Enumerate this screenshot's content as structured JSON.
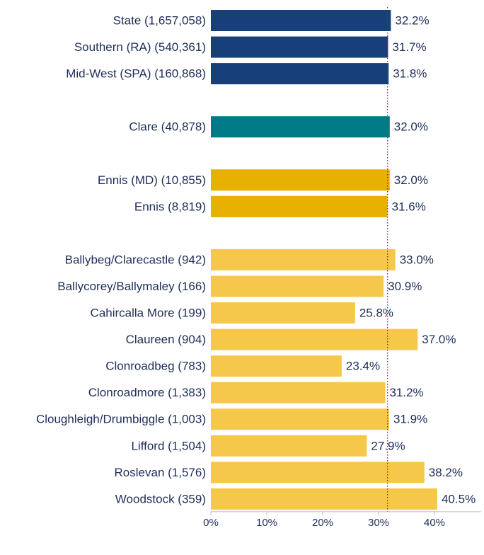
{
  "chart_data": {
    "type": "bar",
    "orientation": "horizontal",
    "categories": [
      "State (1,657,058)",
      "Southern (RA) (540,361)",
      "Mid-West (SPA) (160,868)",
      "Clare (40,878)",
      "Ennis (MD) (10,855)",
      "Ennis (8,819)",
      "Ballybeg/Clarecastle (942)",
      "Ballycorey/Ballymaley (166)",
      "Cahircalla More (199)",
      "Claureen (904)",
      "Clonroadbeg (783)",
      "Clonroadmore (1,383)",
      "Cloughleigh/Drumbiggle (1,003)",
      "Lifford (1,504)",
      "Roslevan (1,576)",
      "Woodstock (359)"
    ],
    "values": [
      32.2,
      31.7,
      31.8,
      32.0,
      32.0,
      31.6,
      33.0,
      30.9,
      25.8,
      37.0,
      23.4,
      31.2,
      31.9,
      27.9,
      38.2,
      40.5
    ],
    "value_labels": [
      "32.2%",
      "31.7%",
      "31.8%",
      "32.0%",
      "32.0%",
      "31.6%",
      "33.0%",
      "30.9%",
      "25.8%",
      "37.0%",
      "23.4%",
      "31.2%",
      "31.9%",
      "27.9%",
      "38.2%",
      "40.5%"
    ],
    "colors": [
      "#173f7a",
      "#173f7a",
      "#173f7a",
      "#007a87",
      "#e8b000",
      "#e8b000",
      "#f5c84c",
      "#f5c84c",
      "#f5c84c",
      "#f5c84c",
      "#f5c84c",
      "#f5c84c",
      "#f5c84c",
      "#f5c84c",
      "#f5c84c",
      "#f5c84c"
    ],
    "xlim": [
      0,
      40
    ],
    "xticks": [
      {
        "value": 0,
        "label": "0%"
      },
      {
        "value": 10,
        "label": "10%"
      },
      {
        "value": 20,
        "label": "20%"
      },
      {
        "value": 30,
        "label": "30%"
      },
      {
        "value": 40,
        "label": "40%"
      }
    ],
    "reference_value": 31.6
  }
}
